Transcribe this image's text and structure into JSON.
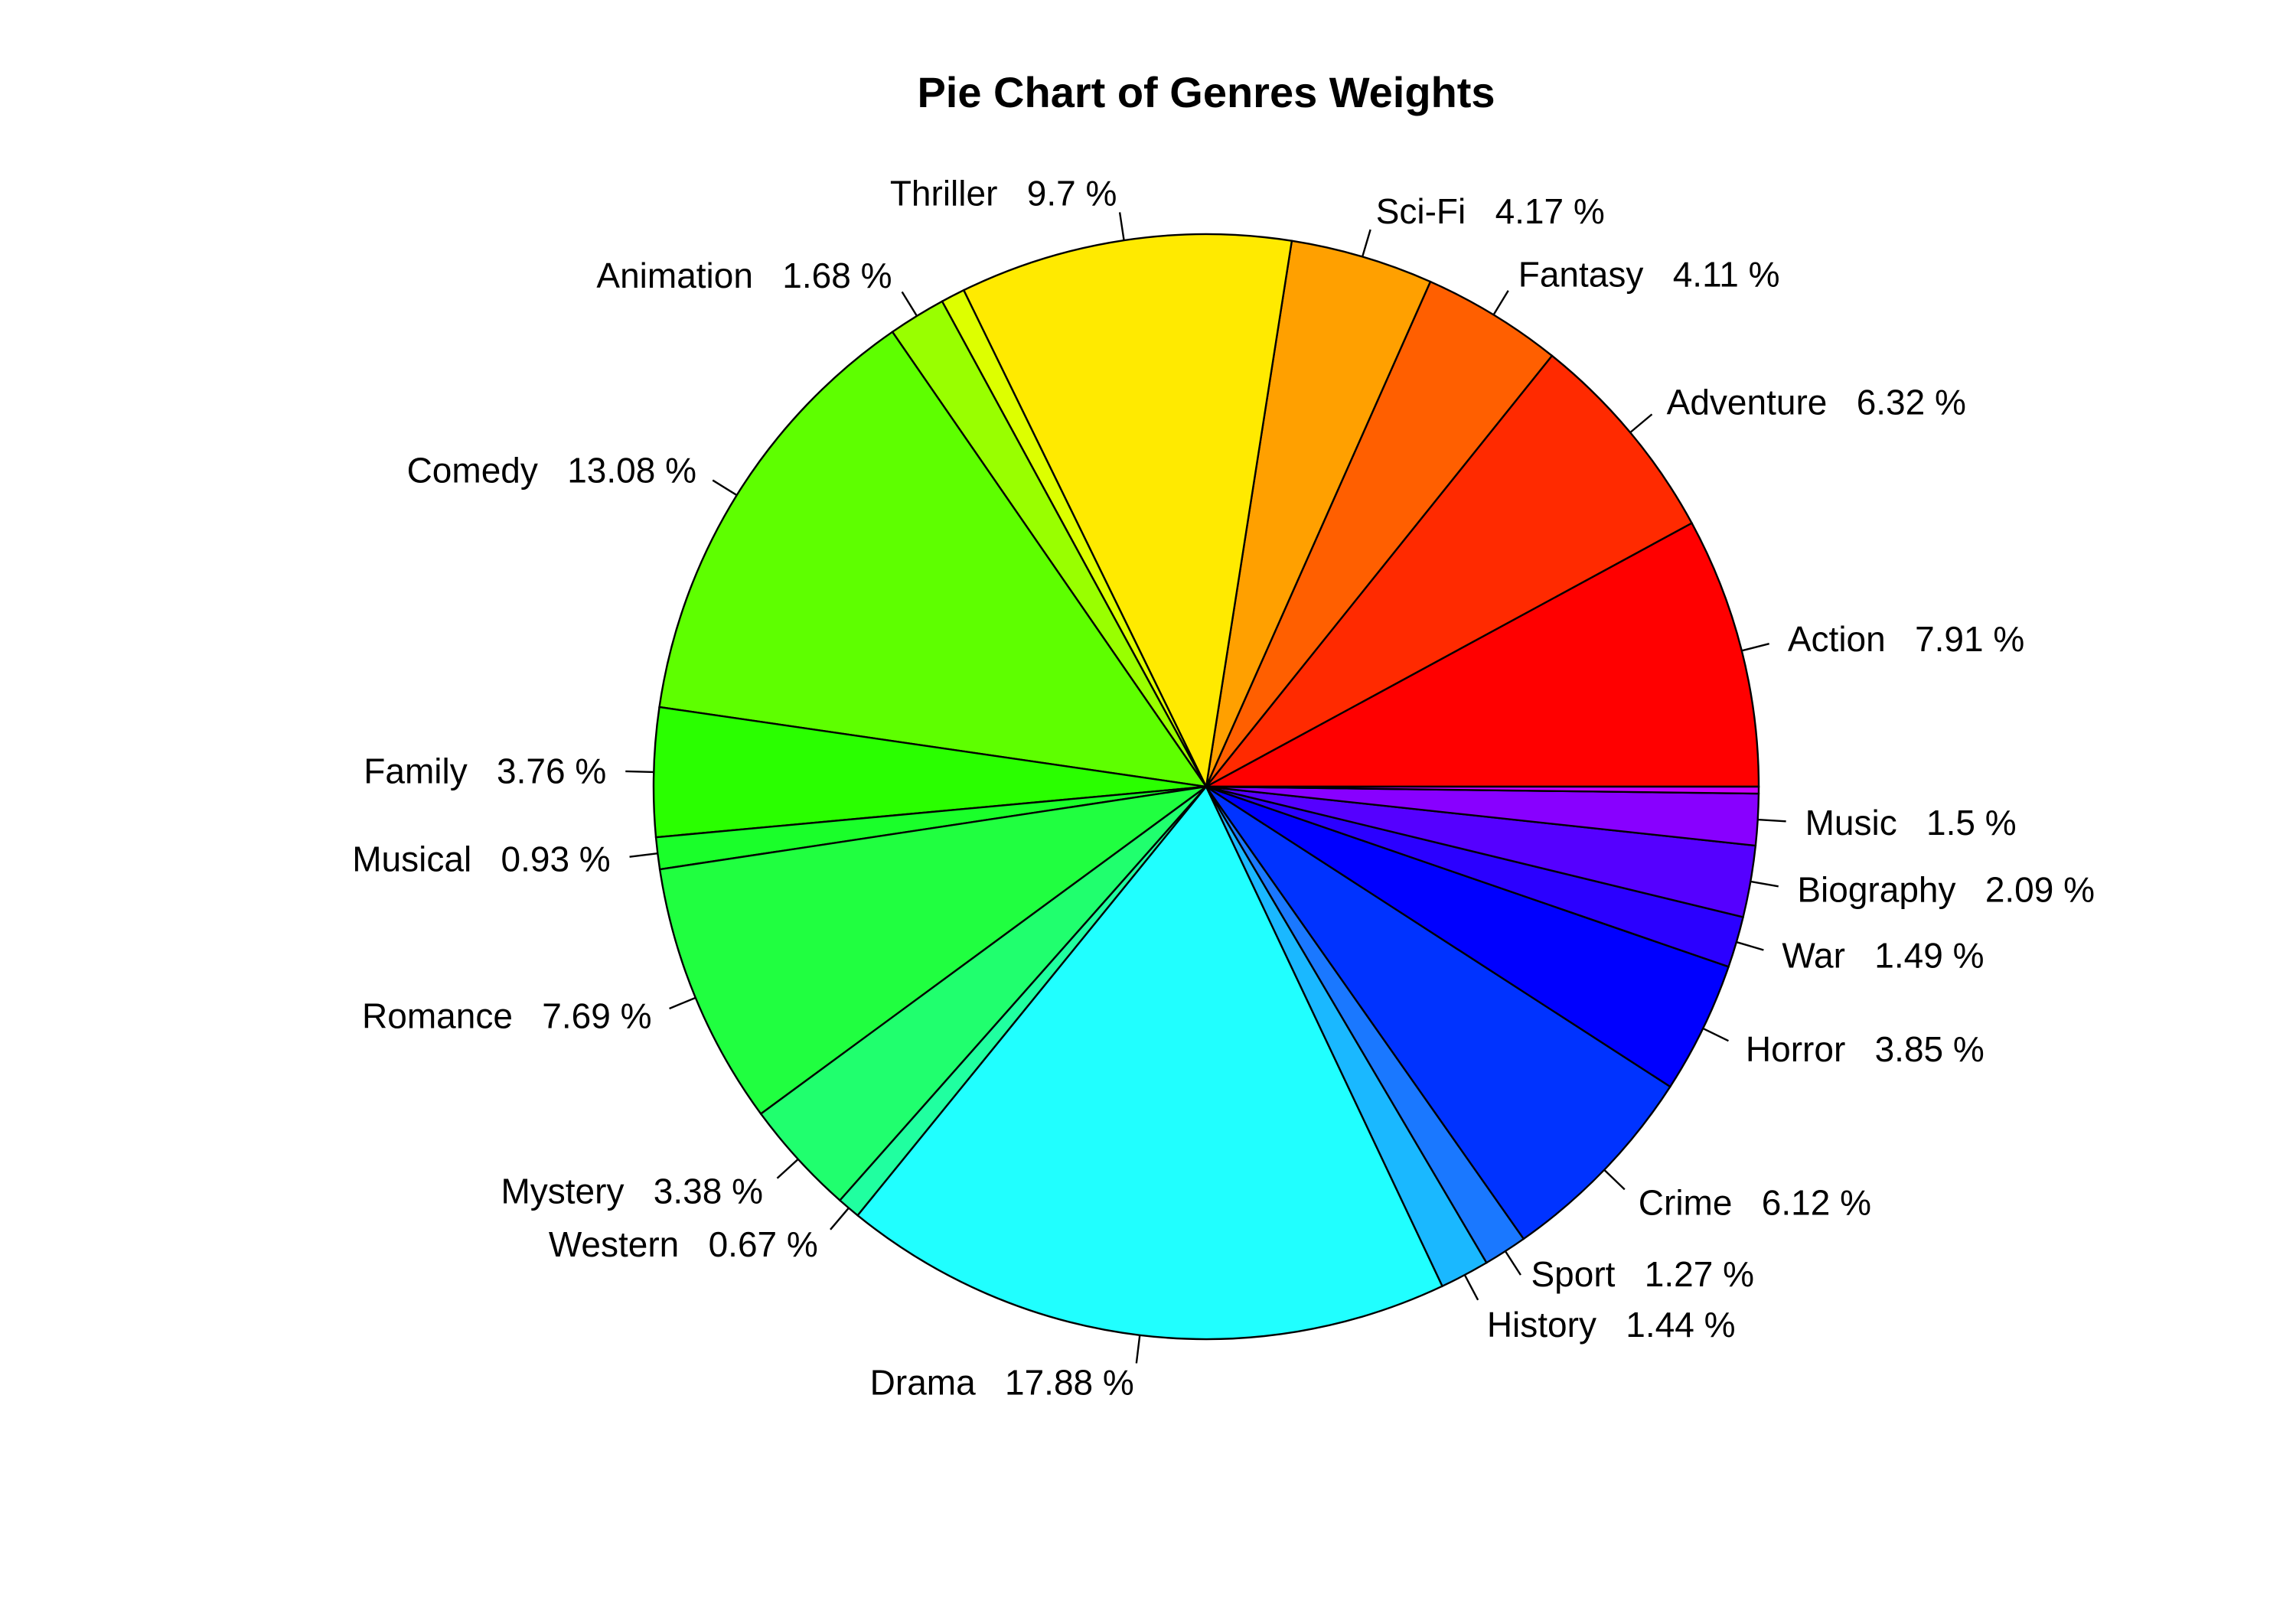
{
  "chart_data": {
    "type": "pie",
    "title": "Pie Chart of Genres Weights",
    "start_angle_deg": 0,
    "direction": "counterclockwise",
    "slices": [
      {
        "label": "Action",
        "value": 7.91,
        "text": "Action   7.91 %",
        "color": "#FF0000"
      },
      {
        "label": "Adventure",
        "value": 6.32,
        "text": "Adventure   6.32 %",
        "color": "#FF2A00"
      },
      {
        "label": "Fantasy",
        "value": 4.11,
        "text": "Fantasy   4.11 %",
        "color": "#FF5F00"
      },
      {
        "label": "Sci-Fi",
        "value": 4.17,
        "text": "Sci-Fi   4.17 %",
        "color": "#FFA000"
      },
      {
        "label": "Thriller",
        "value": 9.7,
        "text": "Thriller   9.7 %",
        "color": "#FFEA00"
      },
      {
        "label": "",
        "value": 0.7,
        "text": "",
        "color": "#DDFF00"
      },
      {
        "label": "Animation",
        "value": 1.68,
        "text": "Animation   1.68 %",
        "color": "#99FF00"
      },
      {
        "label": "Comedy",
        "value": 13.08,
        "text": "Comedy   13.08 %",
        "color": "#5EFF00"
      },
      {
        "label": "Family",
        "value": 3.76,
        "text": "Family   3.76 %",
        "color": "#2AFF00"
      },
      {
        "label": "Musical",
        "value": 0.93,
        "text": "Musical   0.93 %",
        "color": "#1AFF2A"
      },
      {
        "label": "Romance",
        "value": 7.69,
        "text": "Romance   7.69 %",
        "color": "#20FF40"
      },
      {
        "label": "Mystery",
        "value": 3.38,
        "text": "Mystery   3.38 %",
        "color": "#20FF6E"
      },
      {
        "label": "Western",
        "value": 0.67,
        "text": "Western   0.67 %",
        "color": "#20FFA0"
      },
      {
        "label": "Drama",
        "value": 17.88,
        "text": "Drama   17.88 %",
        "color": "#20FFFF"
      },
      {
        "label": "History",
        "value": 1.44,
        "text": "History   1.44 %",
        "color": "#1AB8FF"
      },
      {
        "label": "Sport",
        "value": 1.27,
        "text": "Sport   1.27 %",
        "color": "#1A78FF"
      },
      {
        "label": "Crime",
        "value": 6.12,
        "text": "Crime   6.12 %",
        "color": "#0033FF"
      },
      {
        "label": "Horror",
        "value": 3.85,
        "text": "Horror   3.85 %",
        "color": "#0000FF"
      },
      {
        "label": "War",
        "value": 1.49,
        "text": "War   1.49 %",
        "color": "#2B00FF"
      },
      {
        "label": "Biography",
        "value": 2.09,
        "text": "Biography   2.09 %",
        "color": "#5500FF"
      },
      {
        "label": "Music",
        "value": 1.5,
        "text": "Music   1.5 %",
        "color": "#8800FF"
      },
      {
        "label": "",
        "value": 0.2,
        "text": "",
        "color": "#CC00FF"
      }
    ]
  }
}
